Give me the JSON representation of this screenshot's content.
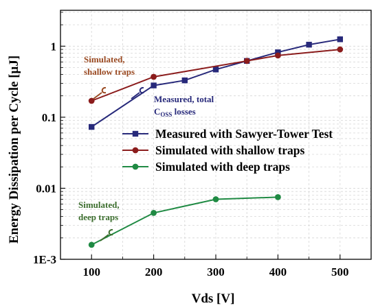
{
  "chart_data": {
    "type": "line",
    "xlabel": "Vds [V]",
    "ylabel": "Energy Dissipation per Cycle [μJ]",
    "xlim": [
      50,
      550
    ],
    "ylim": [
      0.001,
      3.2
    ],
    "yscale": "log",
    "x_ticks": [
      100,
      200,
      300,
      400,
      500
    ],
    "x_tick_labels": [
      "100",
      "200",
      "300",
      "400",
      "500"
    ],
    "y_ticks": [
      0.001,
      0.01,
      0.1,
      1
    ],
    "y_tick_labels": [
      "1E-3",
      "0.01",
      "0.1",
      "1"
    ],
    "grid": true,
    "legend_position": "right",
    "series": [
      {
        "name": "Measured with Sawyer-Tower Test",
        "color": "#27297a",
        "marker": "square",
        "x": [
          100,
          200,
          250,
          300,
          350,
          400,
          450,
          500
        ],
        "y": [
          0.073,
          0.28,
          0.33,
          0.47,
          0.62,
          0.82,
          1.05,
          1.25
        ]
      },
      {
        "name": "Simulated with shallow traps",
        "color": "#8b1c1c",
        "marker": "circle",
        "x": [
          100,
          200,
          350,
          400,
          500
        ],
        "y": [
          0.17,
          0.37,
          0.62,
          0.74,
          0.9
        ]
      },
      {
        "name": "Simulated with deep traps",
        "color": "#1f8a43",
        "marker": "circle",
        "x": [
          100,
          200,
          300,
          400
        ],
        "y": [
          0.0016,
          0.0045,
          0.007,
          0.0075
        ]
      }
    ],
    "annotations": [
      {
        "id": "shallow",
        "lines": [
          "Simulated,",
          "shallow traps"
        ],
        "color": "#9a4a22"
      },
      {
        "id": "measured",
        "line1": "Measured, total",
        "coss_main": "C",
        "coss_sub": "OSS",
        "coss_rest": " losses",
        "color": "#27297a"
      },
      {
        "id": "deep",
        "lines": [
          "Simulated,",
          "deep traps"
        ],
        "color": "#3c6e2e"
      }
    ]
  }
}
